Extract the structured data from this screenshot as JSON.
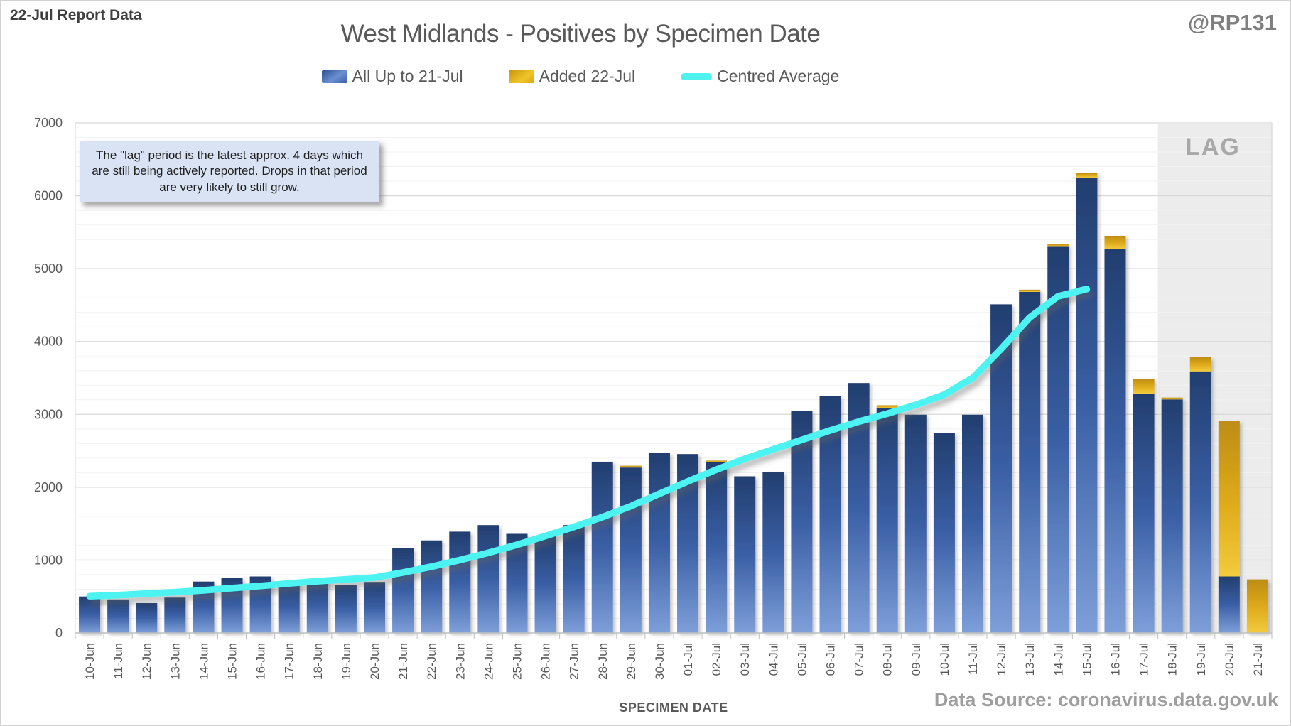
{
  "header": {
    "report_label": "22-Jul Report Data",
    "handle": "@RP131",
    "title": "West Midlands - Positives by Specimen Date"
  },
  "legend": {
    "items": [
      {
        "label": "All Up to 21-Jul",
        "swatch": "blue-gradient-bar"
      },
      {
        "label": "Added 22-Jul",
        "swatch": "gold-gradient-bar"
      },
      {
        "label": "Centred Average",
        "swatch": "cyan-line"
      }
    ]
  },
  "annotation": {
    "text": "The \"lag\" period is the latest approx. 4 days which are still being actively reported. Drops in that period are very likely to still grow."
  },
  "lag_label": "LAG",
  "footer": {
    "xlabel": "SPECIMEN DATE",
    "source": "Data Source: coronavirus.data.gov.uk"
  },
  "colors": {
    "bar_blue_top": "#223e6f",
    "bar_blue_mid": "#3a5fa5",
    "bar_blue_bottom": "#7e9fd9",
    "bar_gold_top": "#bd8d13",
    "bar_gold_mid": "#e0ac1c",
    "bar_gold_bottom": "#f2cb3d",
    "average_line": "#4ef3f0",
    "lag_bg": "#ececec",
    "lag_text": "#a8a8a8",
    "grid_major": "#d9d9d9",
    "grid_minor": "#f2f2f2",
    "axis": "#c0c0c0",
    "tick_text": "#595959"
  },
  "chart_data": {
    "type": "bar",
    "title": "West Midlands - Positives by Specimen Date",
    "xlabel": "SPECIMEN DATE",
    "ylabel": "",
    "ylim": [
      0,
      7000
    ],
    "major_step": 1000,
    "minor_step": 200,
    "grid": true,
    "legend_position": "top",
    "y_ticks": [
      0,
      1000,
      2000,
      3000,
      4000,
      5000,
      6000,
      7000
    ],
    "categories": [
      "10-Jun",
      "11-Jun",
      "12-Jun",
      "13-Jun",
      "14-Jun",
      "15-Jun",
      "16-Jun",
      "17-Jun",
      "18-Jun",
      "19-Jun",
      "20-Jun",
      "21-Jun",
      "22-Jun",
      "23-Jun",
      "24-Jun",
      "25-Jun",
      "26-Jun",
      "27-Jun",
      "28-Jun",
      "29-Jun",
      "30-Jun",
      "01-Jul",
      "02-Jul",
      "03-Jul",
      "04-Jul",
      "05-Jul",
      "06-Jul",
      "07-Jul",
      "08-Jul",
      "09-Jul",
      "10-Jul",
      "11-Jul",
      "12-Jul",
      "13-Jul",
      "14-Jul",
      "15-Jul",
      "16-Jul",
      "17-Jul",
      "18-Jul",
      "19-Jul",
      "20-Jul",
      "21-Jul"
    ],
    "series": [
      {
        "name": "All Up to 21-Jul",
        "values": [
          500,
          460,
          410,
          485,
          705,
          755,
          775,
          690,
          730,
          660,
          700,
          1160,
          1270,
          1390,
          1480,
          1360,
          1330,
          1480,
          2350,
          2270,
          2470,
          2455,
          2340,
          2150,
          2210,
          3050,
          3250,
          3430,
          3085,
          2995,
          2740,
          2995,
          4510,
          4680,
          5300,
          6250,
          5265,
          3285,
          3205,
          3590,
          775,
          0
        ]
      },
      {
        "name": "Added 22-Jul",
        "values": [
          0,
          0,
          0,
          0,
          0,
          0,
          0,
          0,
          0,
          0,
          0,
          0,
          0,
          0,
          0,
          0,
          0,
          0,
          0,
          25,
          0,
          0,
          25,
          0,
          0,
          0,
          0,
          0,
          40,
          0,
          0,
          0,
          0,
          30,
          35,
          60,
          185,
          205,
          25,
          195,
          2135,
          735
        ]
      }
    ],
    "line": {
      "name": "Centred Average",
      "values": [
        505,
        520,
        540,
        560,
        585,
        615,
        645,
        680,
        710,
        735,
        760,
        830,
        910,
        1000,
        1100,
        1210,
        1330,
        1455,
        1590,
        1740,
        1910,
        2080,
        2240,
        2390,
        2520,
        2650,
        2780,
        2900,
        3010,
        3130,
        3270,
        3500,
        3900,
        4330,
        4620,
        4720
      ]
    },
    "lag_start_category": "18-Jul"
  }
}
